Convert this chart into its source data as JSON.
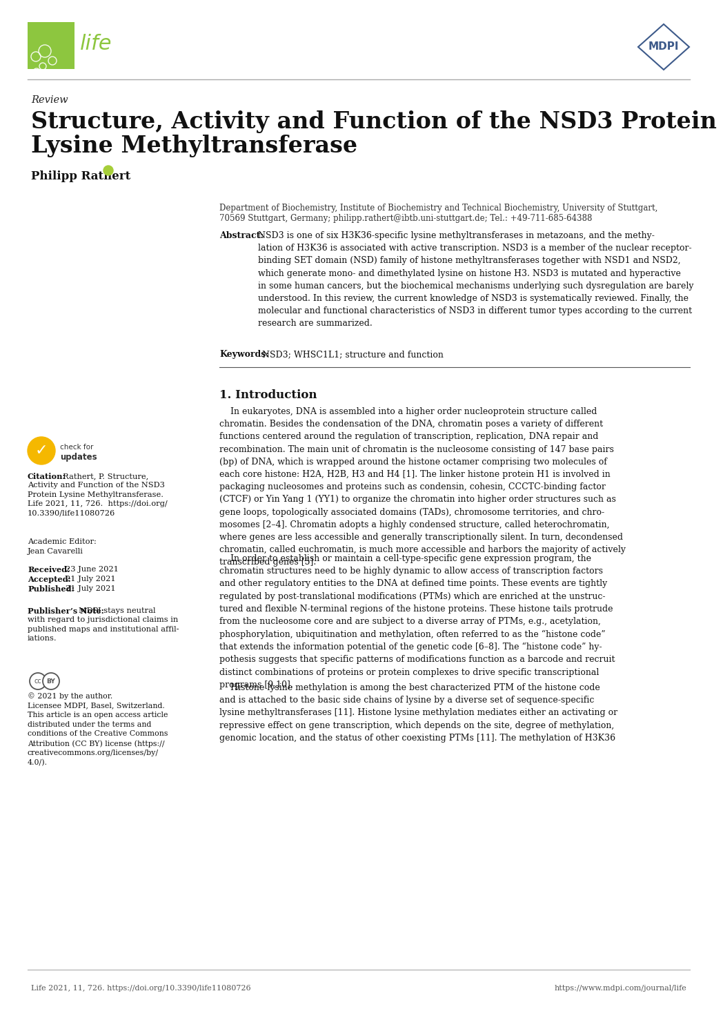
{
  "background_color": "#ffffff",
  "life_logo_color": "#8dc63f",
  "mdpi_color": "#3d5a8a",
  "separator_color": "#888888",
  "review_label": "Review",
  "title_line1": "Structure, Activity and Function of the NSD3 Protein",
  "title_line2": "Lysine Methyltransferase",
  "author": "Philipp Rathert",
  "affil_line1": "Department of Biochemistry, Institute of Biochemistry and Technical Biochemistry, University of Stuttgart,",
  "affil_line2": "70569 Stuttgart, Germany; philipp.rathert@ibtb.uni-stuttgart.de; Tel.: +49-711-685-64388",
  "abstract_body": "NSD3 is one of six H3K36-specific lysine methyltransferases in metazoans, and the methy-\nlation of H3K36 is associated with active transcription. NSD3 is a member of the nuclear receptor-\nbinding SET domain (NSD) family of histone methyltransferases together with NSD1 and NSD2,\nwhich generate mono- and dimethylated lysine on histone H3. NSD3 is mutated and hyperactive\nin some human cancers, but the biochemical mechanisms underlying such dysregulation are barely\nunderstood. In this review, the current knowledge of NSD3 is systematically reviewed. Finally, the\nmolecular and functional characteristics of NSD3 in different tumor types according to the current\nresearch are summarized.",
  "keywords_text": "NSD3; WHSC1L1; structure and function",
  "section1_title": "1. Introduction",
  "para1": "    In eukaryotes, DNA is assembled into a higher order nucleoprotein structure called\nchromatin. Besides the condensation of the DNA, chromatin poses a variety of different\nfunctions centered around the regulation of transcription, replication, DNA repair and\nrecombination. The main unit of chromatin is the nucleosome consisting of 147 base pairs\n(bp) of DNA, which is wrapped around the histone octamer comprising two molecules of\neach core histone: H2A, H2B, H3 and H4 [1]. The linker histone protein H1 is involved in\npackaging nucleosomes and proteins such as condensin, cohesin, CCCTC-binding factor\n(CTCF) or Yin Yang 1 (YY1) to organize the chromatin into higher order structures such as\ngene loops, topologically associated domains (TADs), chromosome territories, and chro-\nmosomes [2–4]. Chromatin adopts a highly condensed structure, called heterochromatin,\nwhere genes are less accessible and generally transcriptionally silent. In turn, decondensed\nchromatin, called euchromatin, is much more accessible and harbors the majority of actively\ntranscribed genes [5].",
  "para2": "    In order to establish or maintain a cell-type-specific gene expression program, the\nchromatin structures need to be highly dynamic to allow access of transcription factors\nand other regulatory entities to the DNA at defined time points. These events are tightly\nregulated by post-translational modifications (PTMs) which are enriched at the unstruc-\ntured and flexible N-terminal regions of the histone proteins. These histone tails protrude\nfrom the nucleosome core and are subject to a diverse array of PTMs, e.g., acetylation,\nphosphorylation, ubiquitination and methylation, often referred to as the “histone code”\nthat extends the information potential of the genetic code [6–8]. The “histone code” hy-\npothesis suggests that specific patterns of modifications function as a barcode and recruit\ndistinct combinations of proteins or protein complexes to drive specific transcriptional\nprograms [9,10].",
  "para3": "    Histone lysine methylation is among the best characterized PTM of the histone code\nand is attached to the basic side chains of lysine by a diverse set of sequence-specific\nlysine methyltransferases [11]. Histone lysine methylation mediates either an activating or\nrepressive effect on gene transcription, which depends on the site, degree of methylation,\ngenomic location, and the status of other coexisting PTMs [11]. The methylation of H3K36",
  "cite_label": "Citation:",
  "cite_text": "Rathert, P. Structure,\nActivity and Function of the NSD3\nProtein Lysine Methyltransferase.\nLife 2021, 11, 726.  https://doi.org/\n10.3390/life11080726",
  "ae_label": "Academic Editor:",
  "ae_text": "Jean Cavarelli",
  "received": "Received:  23 June 2021",
  "accepted": "Accepted:  21 July 2021",
  "published": "Published:  21 July 2021",
  "pn_label": "Publisher’s Note:",
  "pn_text": "MDPI stays neutral\nwith regard to jurisdictional claims in\npublished maps and institutional affil-\niations.",
  "copy_text": "© 2021 by the author.\nLicensee MDPI, Basel, Switzerland.\nThis article is an open access article\ndistributed under the terms and\nconditions of the Creative Commons\nAttribution (CC BY) license (https://\ncreativecommons.org/licenses/by/\n4.0/).",
  "footer_left": "Life 2021, 11, 726. https://doi.org/10.3390/life11080726",
  "footer_right": "https://www.mdpi.com/journal/life"
}
